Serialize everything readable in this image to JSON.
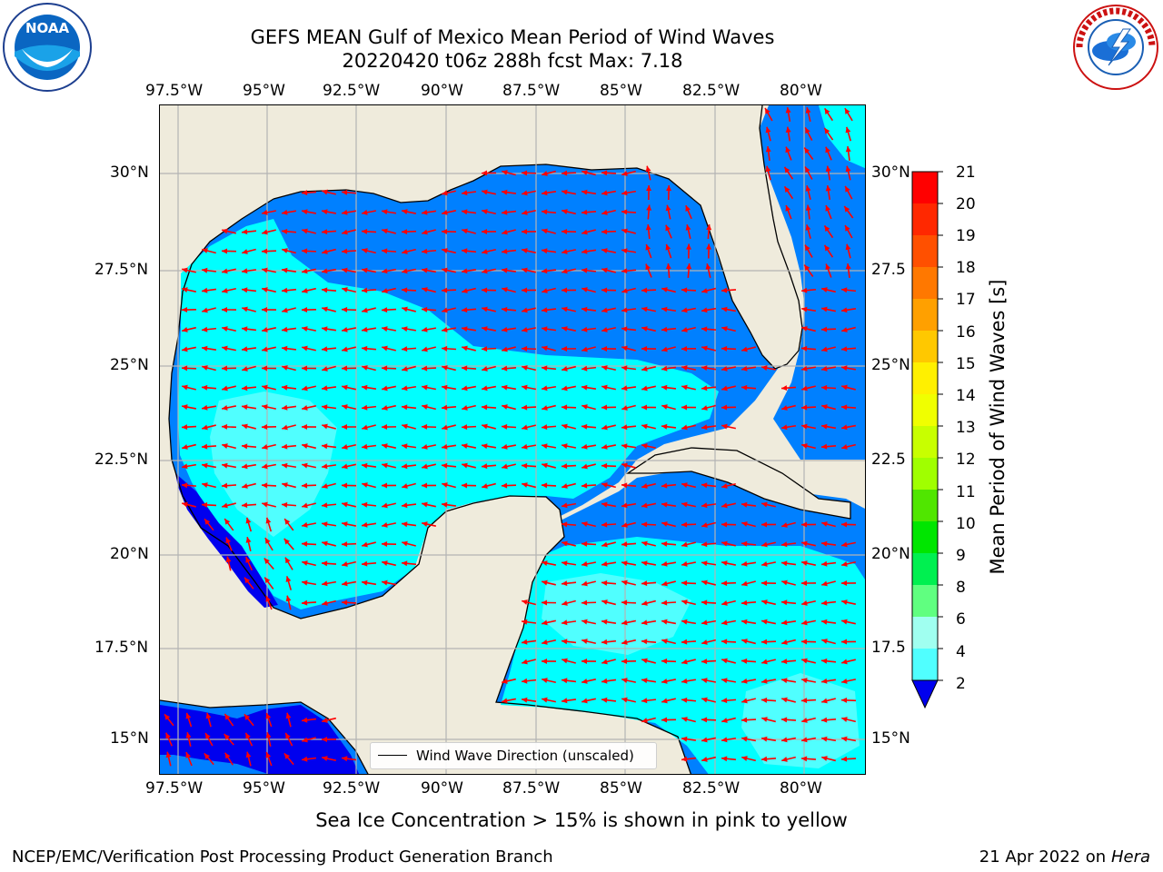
{
  "header": {
    "title_line1": "GEFS MEAN Gulf of Mexico Mean Period of Wind Waves",
    "title_line2": "20220420 t06z 288h fcst   Max: 7.18"
  },
  "logos": {
    "left": {
      "name": "NOAA",
      "text": "NOAA"
    },
    "right": {
      "name": "National Weather Service"
    }
  },
  "axes": {
    "lon_ticks": [
      "97.5°W",
      "95°W",
      "92.5°W",
      "90°W",
      "87.5°W",
      "85°W",
      "82.5°W",
      "80°W"
    ],
    "lat_ticks": [
      "30°N",
      "27.5°N",
      "25°N",
      "22.5°N",
      "20°N",
      "17.5°N",
      "15°N"
    ],
    "lat_ticks_right": [
      "30°N",
      "27.5",
      "25°N",
      "22.5",
      "20°N",
      "17.5",
      "15°N"
    ]
  },
  "legend": {
    "label": "Wind Wave Direction (unscaled)"
  },
  "colorbar": {
    "label": "Mean Period of Wind Waves [s]",
    "ticks": [
      "21",
      "20",
      "19",
      "18",
      "17",
      "16",
      "15",
      "14",
      "13",
      "12",
      "11",
      "10",
      "9",
      "8",
      "6",
      "4",
      "2"
    ],
    "colors": [
      "#ff0000",
      "#ff2800",
      "#ff5000",
      "#ff7800",
      "#ffa000",
      "#ffc800",
      "#fff000",
      "#f0ff00",
      "#c8ff00",
      "#a0ff00",
      "#50e600",
      "#00e600",
      "#00f050",
      "#60ff80",
      "#a0fff0",
      "#50ffff",
      "#00ffff",
      "#0080ff"
    ]
  },
  "map_colors": {
    "land": "#efebdc",
    "ocean_2_4": "#0080ff",
    "ocean_4_6": "#00ffff",
    "ocean_6_8": "#50ffff",
    "ocean_lt2": "#0000ee",
    "arrows": "#ff0000",
    "grid": "#b3b3b3"
  },
  "notes": {
    "sea_ice": "Sea Ice Concentration > 15% is shown in pink to yellow",
    "credit": "NCEP/EMC/Verification Post Processing Product Generation Branch",
    "date_prefix": "21 Apr 2022 on ",
    "machine": "Hera"
  }
}
